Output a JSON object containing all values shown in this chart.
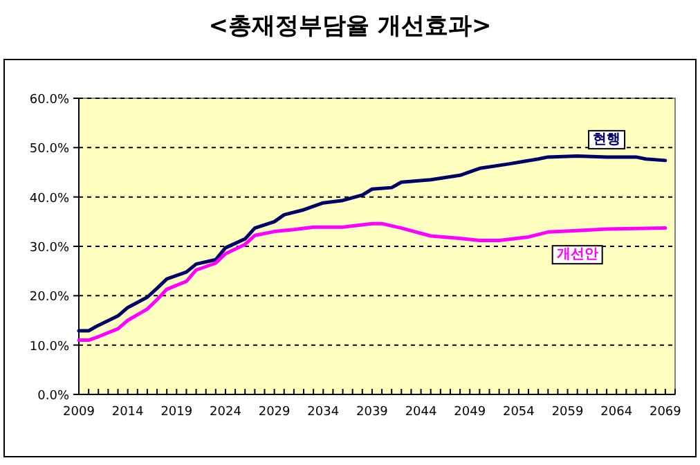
{
  "chart_data": {
    "type": "line",
    "title": "<총재정부담율 개선효과>",
    "xlim": [
      2009,
      2070
    ],
    "xticks": [
      2009,
      2014,
      2019,
      2024,
      2029,
      2034,
      2039,
      2044,
      2049,
      2054,
      2059,
      2064,
      2069
    ],
    "ylim": [
      0,
      60
    ],
    "yticks": [
      {
        "value": 0,
        "label": "0.0%"
      },
      {
        "value": 10,
        "label": "10.0%"
      },
      {
        "value": 20,
        "label": "20.0%"
      },
      {
        "value": 30,
        "label": "30.0%"
      },
      {
        "value": 40,
        "label": "40.0%"
      },
      {
        "value": 50,
        "label": "50.0%"
      },
      {
        "value": 60,
        "label": "60.0%"
      }
    ],
    "grid": "y",
    "line_style": "solid",
    "marker": "none",
    "series": [
      {
        "name": "현행",
        "color": "#000066",
        "x": [
          2009,
          2010,
          2011,
          2013,
          2014,
          2016,
          2017,
          2018,
          2020,
          2021,
          2023,
          2024,
          2026,
          2027,
          2029,
          2030,
          2032,
          2034,
          2036,
          2038,
          2039,
          2041,
          2042,
          2045,
          2048,
          2050,
          2053,
          2056,
          2057,
          2060,
          2063,
          2066,
          2067,
          2069
        ],
        "values": [
          12.9,
          12.9,
          14.0,
          15.9,
          17.6,
          19.7,
          21.5,
          23.4,
          24.8,
          26.4,
          27.3,
          29.7,
          31.5,
          33.7,
          35.0,
          36.4,
          37.4,
          38.8,
          39.3,
          40.4,
          41.6,
          41.9,
          43.0,
          43.5,
          44.4,
          45.8,
          46.7,
          47.7,
          48.1,
          48.3,
          48.1,
          48.1,
          47.7,
          47.4
        ]
      },
      {
        "name": "개선안",
        "color": "#ff00ff",
        "x": [
          2009,
          2010,
          2011,
          2013,
          2014,
          2016,
          2017,
          2018,
          2020,
          2021,
          2023,
          2024,
          2026,
          2027,
          2029,
          2031,
          2033,
          2036,
          2039,
          2040,
          2042,
          2045,
          2048,
          2050,
          2052,
          2055,
          2057,
          2060,
          2063,
          2066,
          2069
        ],
        "values": [
          11.0,
          11.0,
          11.7,
          13.3,
          15.0,
          17.3,
          19.2,
          21.3,
          22.9,
          25.2,
          26.6,
          28.5,
          30.4,
          32.2,
          33.0,
          33.4,
          33.9,
          33.9,
          34.6,
          34.6,
          33.7,
          32.1,
          31.6,
          31.2,
          31.2,
          31.9,
          32.9,
          33.2,
          33.5,
          33.6,
          33.7
        ]
      }
    ]
  }
}
